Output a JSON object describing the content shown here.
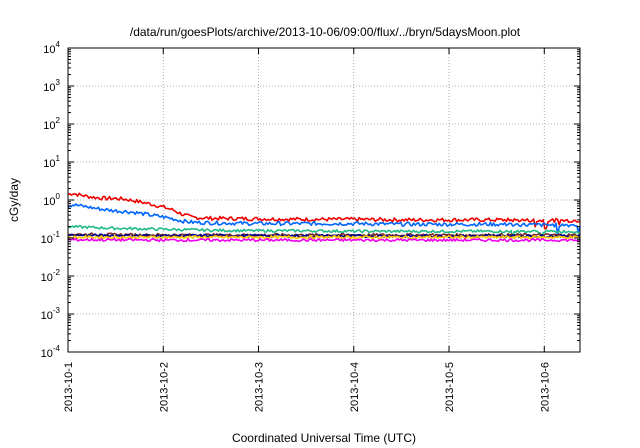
{
  "chart_data": {
    "type": "line",
    "title": "/data/run/goesPlots/archive/2013-10-06/09:00/flux/../bryn/5daysMoon.plot",
    "xlabel": "Coordinated Universal Time (UTC)",
    "ylabel": "cGy/day",
    "yscale": "log",
    "ylim": [
      0.0001,
      10000
    ],
    "xlim": [
      "2013-10-01 00:00",
      "2013-10-06 09:00"
    ],
    "grid": true,
    "y_ticks": [
      {
        "base": "10",
        "exp": "4",
        "value": 10000
      },
      {
        "base": "10",
        "exp": "3",
        "value": 1000
      },
      {
        "base": "10",
        "exp": "2",
        "value": 100
      },
      {
        "base": "10",
        "exp": "1",
        "value": 10
      },
      {
        "base": "10",
        "exp": "0",
        "value": 1
      },
      {
        "base": "10",
        "exp": "-1",
        "value": 0.1
      },
      {
        "base": "10",
        "exp": "-2",
        "value": 0.01
      },
      {
        "base": "10",
        "exp": "-3",
        "value": 0.001
      },
      {
        "base": "10",
        "exp": "-4",
        "value": 0.0001
      }
    ],
    "x_ticks": [
      {
        "label": "2013-10-1",
        "day": 0
      },
      {
        "label": "2013-10-2",
        "day": 1
      },
      {
        "label": "2013-10-3",
        "day": 2
      },
      {
        "label": "2013-10-4",
        "day": 3
      },
      {
        "label": "2013-10-5",
        "day": 4
      },
      {
        "label": "2013-10-6",
        "day": 5
      }
    ],
    "x_units": "days since 2013-10-01 00:00 UTC",
    "series": [
      {
        "color": "#ee0000",
        "x": [
          0,
          0.05,
          0.1,
          0.2,
          0.3,
          0.4,
          0.5,
          0.6,
          0.7,
          0.8,
          0.9,
          1.0,
          1.1,
          1.2,
          1.3,
          1.5,
          2.0,
          2.5,
          3.0,
          3.5,
          4.0,
          4.5,
          5.0,
          5.38
        ],
        "y": [
          1.4,
          1.5,
          1.4,
          1.25,
          1.15,
          1.1,
          1.1,
          1.05,
          0.95,
          0.85,
          0.75,
          0.65,
          0.55,
          0.42,
          0.35,
          0.33,
          0.32,
          0.31,
          0.31,
          0.3,
          0.3,
          0.3,
          0.29,
          0.29
        ]
      },
      {
        "color": "#0066ff",
        "x": [
          0,
          0.05,
          0.1,
          0.2,
          0.3,
          0.4,
          0.5,
          0.6,
          0.7,
          0.8,
          0.9,
          1.0,
          1.1,
          1.2,
          1.3,
          1.5,
          2.0,
          2.5,
          3.0,
          3.5,
          4.0,
          4.5,
          5.0,
          5.38
        ],
        "y": [
          0.7,
          0.75,
          0.72,
          0.66,
          0.6,
          0.55,
          0.52,
          0.5,
          0.47,
          0.43,
          0.39,
          0.36,
          0.32,
          0.28,
          0.26,
          0.25,
          0.24,
          0.24,
          0.24,
          0.23,
          0.23,
          0.23,
          0.22,
          0.22
        ]
      },
      {
        "color": "#22bb88",
        "x": [
          0,
          0.5,
          1.0,
          1.5,
          2.0,
          2.5,
          3.0,
          3.5,
          4.0,
          4.5,
          5.0,
          5.38
        ],
        "y": [
          0.2,
          0.18,
          0.17,
          0.16,
          0.155,
          0.155,
          0.15,
          0.15,
          0.15,
          0.15,
          0.148,
          0.148
        ]
      },
      {
        "color": "#7a2a2a",
        "x": [
          0,
          1.0,
          2.0,
          3.0,
          4.0,
          5.0,
          5.38
        ],
        "y": [
          0.125,
          0.12,
          0.12,
          0.12,
          0.12,
          0.12,
          0.12
        ]
      },
      {
        "color": "#000088",
        "x": [
          0,
          1.0,
          2.0,
          3.0,
          4.0,
          5.0,
          5.38
        ],
        "y": [
          0.118,
          0.115,
          0.115,
          0.113,
          0.113,
          0.113,
          0.113
        ]
      },
      {
        "color": "#ffcc00",
        "x": [
          0,
          1.0,
          2.0,
          3.0,
          4.0,
          5.0,
          5.38
        ],
        "y": [
          0.105,
          0.105,
          0.105,
          0.105,
          0.105,
          0.105,
          0.105
        ]
      },
      {
        "color": "#ee00ee",
        "x": [
          0,
          1.0,
          2.0,
          3.0,
          4.0,
          5.0,
          5.38
        ],
        "y": [
          0.09,
          0.088,
          0.088,
          0.088,
          0.088,
          0.088,
          0.088
        ]
      }
    ]
  }
}
